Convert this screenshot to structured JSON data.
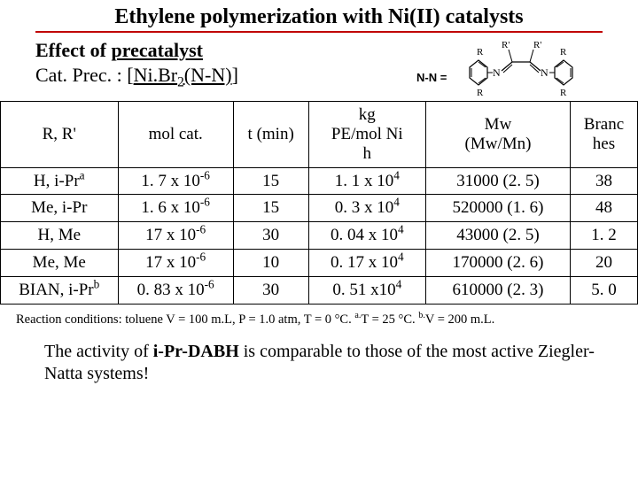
{
  "title": "Ethylene polymerization with Ni(II) catalysts",
  "subtitle": {
    "line1_prefix": "Effect of ",
    "line1_strong": "precatalyst",
    "line2_plain1": "Cat. Prec. : [",
    "line2_u": "Ni.Br",
    "line2_u_sub": "2",
    "line2_u2": "(N-N)",
    "line2_plain2": "]"
  },
  "chem": {
    "nn_label": "N-N =",
    "r_top": "R",
    "rprime1": "R'",
    "rprime2": "R'",
    "r_left": "R",
    "r_right": "R",
    "n1": "N",
    "n2": "N",
    "line_color": "#000000"
  },
  "table": {
    "headers": {
      "rr": "R, R'",
      "mol": "mol cat.",
      "t": "t (min)",
      "kg_l1": "kg",
      "kg_l2": "PE/mol Ni",
      "kg_l3": "h",
      "mw_l1": "Mw",
      "mw_l2": "(Mw/Mn)",
      "br_l1": "Branc",
      "br_l2": "hes"
    },
    "rows": [
      {
        "rr_html": "H, i-Pr<sup>a</sup>",
        "mol_html": "1. 7 x 10<sup>-6</sup>",
        "t": "15",
        "kg_html": "1. 1 x 10<sup>4</sup>",
        "mw": "31000 (2. 5)",
        "br": "38"
      },
      {
        "rr_html": "Me, i-Pr",
        "mol_html": "1. 6 x 10<sup>-6</sup>",
        "t": "15",
        "kg_html": "0. 3 x 10<sup>4</sup>",
        "mw": "520000 (1. 6)",
        "br": "48"
      },
      {
        "rr_html": "H, Me",
        "mol_html": "17 x 10<sup>-6</sup>",
        "t": "30",
        "kg_html": "0. 04 x 10<sup>4</sup>",
        "mw": "43000 (2. 5)",
        "br": "1. 2"
      },
      {
        "rr_html": "Me, Me",
        "mol_html": "17 x 10<sup>-6</sup>",
        "t": "10",
        "kg_html": "0. 17 x 10<sup>4</sup>",
        "mw": "170000 (2. 6)",
        "br": "20"
      },
      {
        "rr_html": "BIAN, i-Pr<sup>b</sup>",
        "mol_html": "0. 83 x 10<sup>-6</sup>",
        "t": "30",
        "kg_html": "0. 51 x10<sup>4</sup>",
        "mw": "610000 (2. 3)",
        "br": "5. 0"
      }
    ]
  },
  "footnote_html": "Reaction conditions: toluene V = 100 m.L, P = 1.0 atm, T = 0 °C. <sup>a.</sup>T = 25 °C. <sup>b.</sup>V = 200 m.L.",
  "conclusion_prefix": "The activity of ",
  "conclusion_strong": "i-Pr-DABH",
  "conclusion_suffix": " is comparable to those of the most active Ziegler-Natta systems!",
  "colors": {
    "underline": "#c00000",
    "text": "#000000",
    "bg": "#ffffff"
  }
}
